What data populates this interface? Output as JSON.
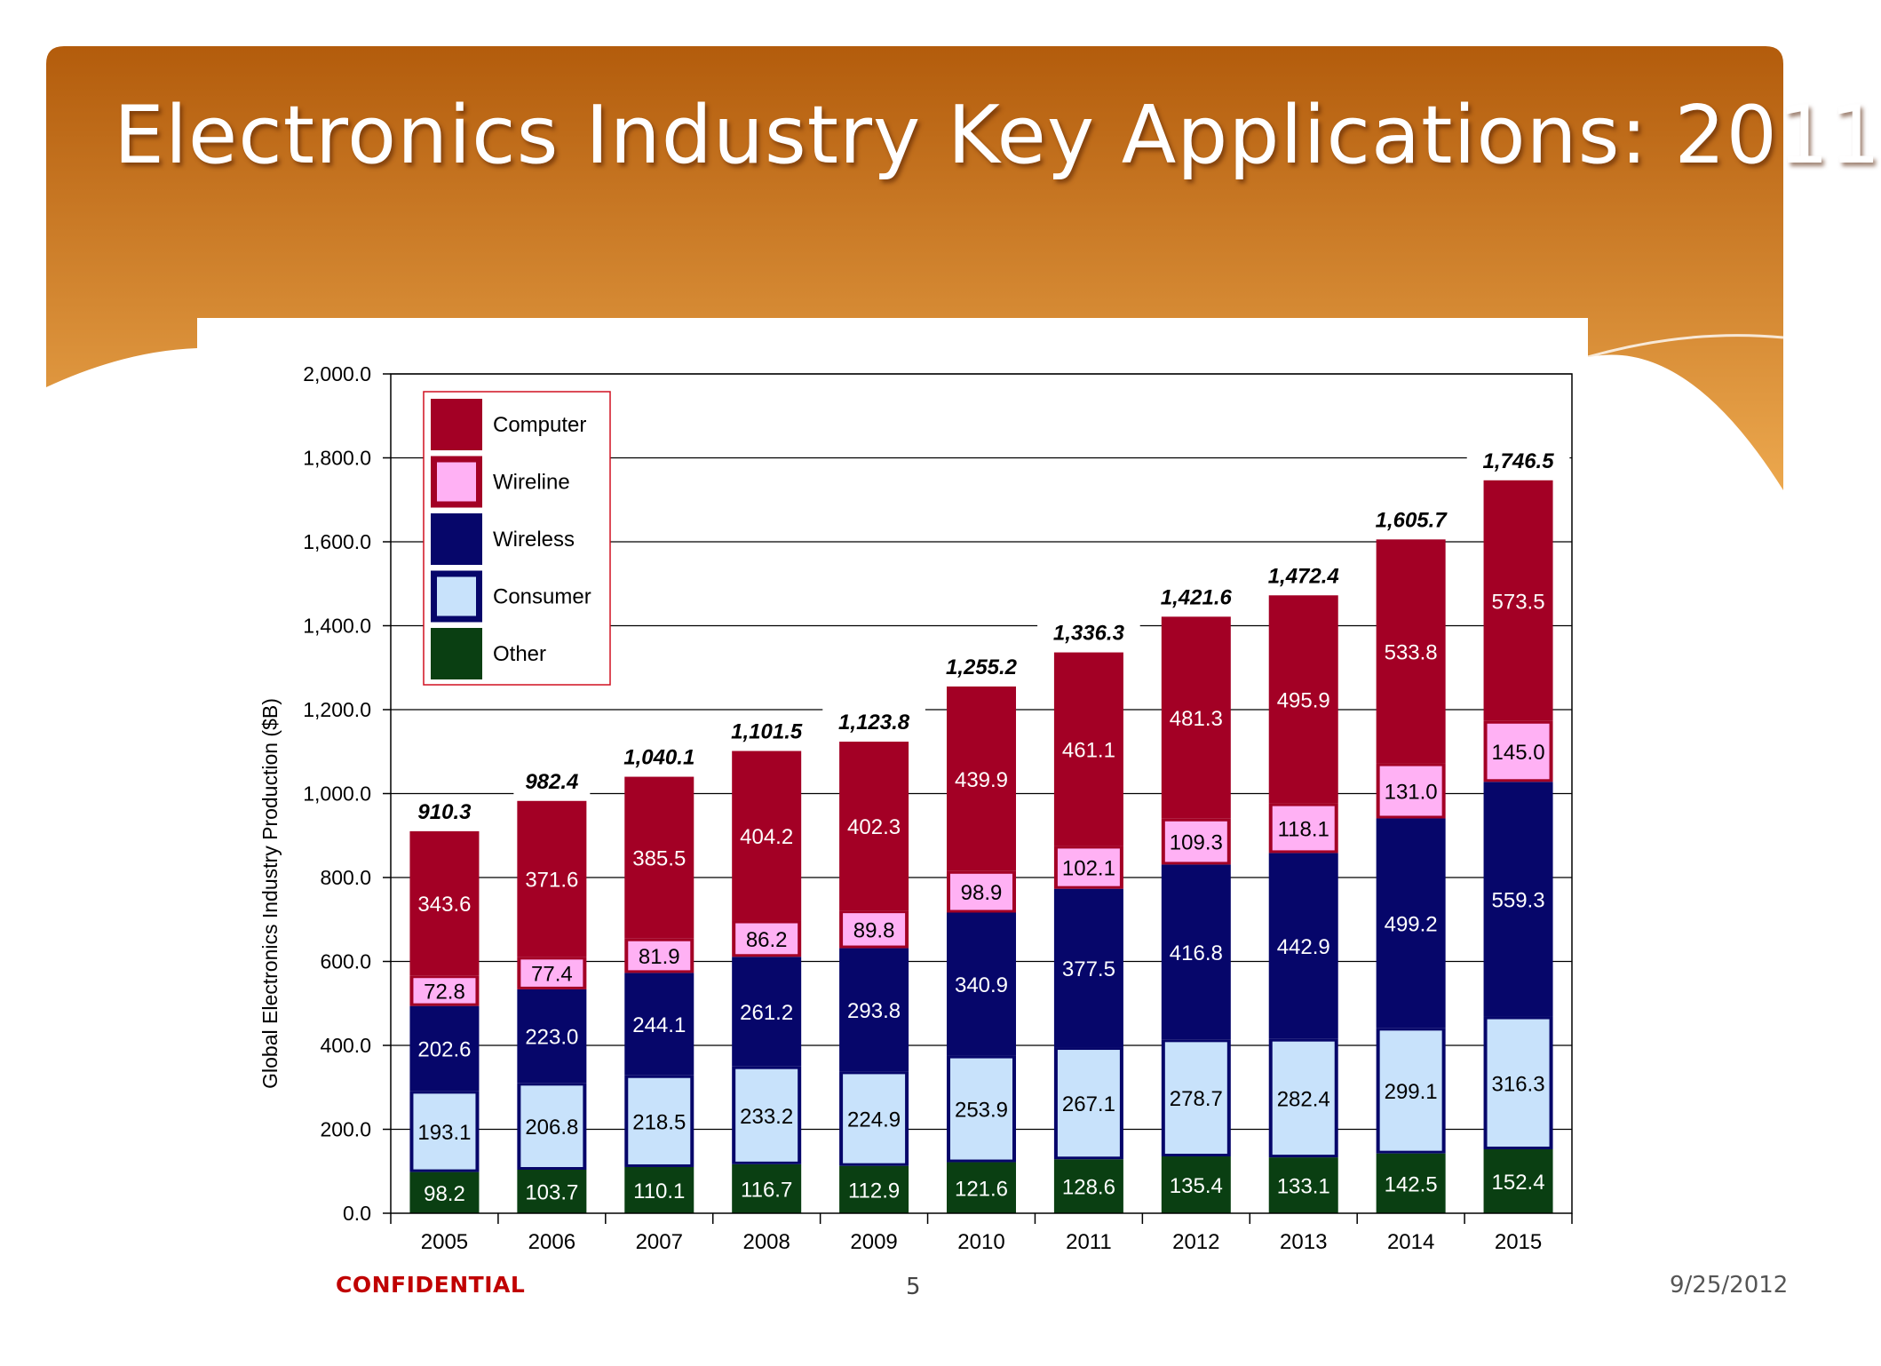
{
  "slide": {
    "title": "Electronics Industry Key Applications: 2011",
    "confidential_label": "CONFIDENTIAL",
    "page_number": "5",
    "date": "9/25/2012"
  },
  "colors": {
    "header_top": "#b35c0c",
    "header_bottom": "#eca84e",
    "Computer": "#a30025",
    "Wireline": "#ffb1f4",
    "Wireless": "#06066a",
    "Consumer": "#c8e2fb",
    "Other": "#0a3f12"
  },
  "chart_data": {
    "type": "bar",
    "stacked": true,
    "ylabel": "Global Electronics Industry Production ($B)",
    "xlabel": "",
    "ylim": [
      0,
      2000
    ],
    "yticks": [
      "0.0",
      "200.0",
      "400.0",
      "600.0",
      "800.0",
      "1,000.0",
      "1,200.0",
      "1,400.0",
      "1,600.0",
      "1,800.0",
      "2,000.0"
    ],
    "grid": true,
    "legend_position": "top-left",
    "categories": [
      "2005",
      "2006",
      "2007",
      "2008",
      "2009",
      "2010",
      "2011",
      "2012",
      "2013",
      "2014",
      "2015"
    ],
    "series": [
      {
        "name": "Other",
        "values": [
          98.2,
          103.7,
          110.1,
          116.7,
          112.9,
          121.6,
          128.6,
          135.4,
          133.1,
          142.5,
          152.4
        ]
      },
      {
        "name": "Consumer",
        "values": [
          193.1,
          206.8,
          218.5,
          233.2,
          224.9,
          253.9,
          267.1,
          278.7,
          282.4,
          299.1,
          316.3
        ]
      },
      {
        "name": "Wireless",
        "values": [
          202.6,
          223.0,
          244.1,
          261.2,
          293.8,
          340.9,
          377.5,
          416.8,
          442.9,
          499.2,
          559.3
        ]
      },
      {
        "name": "Wireline",
        "values": [
          72.8,
          77.4,
          81.9,
          86.2,
          89.8,
          98.9,
          102.1,
          109.3,
          118.1,
          131.0,
          145.0
        ]
      },
      {
        "name": "Computer",
        "values": [
          343.6,
          371.6,
          385.5,
          404.2,
          402.3,
          439.9,
          461.1,
          481.3,
          495.9,
          533.8,
          573.5
        ]
      }
    ],
    "value_labels": [
      [
        "98.2",
        "193.1",
        "202.6",
        "72.8",
        "343.6"
      ],
      [
        "103.7",
        "206.8",
        "223.0",
        "77.4",
        "371.6"
      ],
      [
        "110.1",
        "218.5",
        "244.1",
        "81.9",
        "385.5"
      ],
      [
        "116.7",
        "233.2",
        "261.2",
        "86.2",
        "404.2"
      ],
      [
        "112.9",
        "224.9",
        "293.8",
        "89.8",
        "402.3"
      ],
      [
        "121.6",
        "253.9",
        "340.9",
        "98.9",
        "439.9"
      ],
      [
        "128.6",
        "267.1",
        "377.5",
        "102.1",
        "461.1"
      ],
      [
        "135.4",
        "278.7",
        "416.8",
        "109.3",
        "481.3"
      ],
      [
        "133.1",
        "282.4",
        "442.9",
        "118.1",
        "495.9"
      ],
      [
        "142.5",
        "299.1",
        "499.2",
        "131.0",
        "533.8"
      ],
      [
        "152.4",
        "316.3",
        "559.3",
        "145.0",
        "573.5"
      ]
    ],
    "totals": [
      910.3,
      982.4,
      1040.1,
      1101.5,
      1123.8,
      1255.2,
      1336.3,
      1421.6,
      1472.4,
      1605.7,
      1746.5
    ],
    "total_labels": [
      "910.3",
      "982.4",
      "1,040.1",
      "1,101.5",
      "1,123.8",
      "1,255.2",
      "1,336.3",
      "1,421.6",
      "1,472.4",
      "1,605.7",
      "1,746.5"
    ],
    "legend": [
      "Computer",
      "Wireline",
      "Wireless",
      "Consumer",
      "Other"
    ]
  }
}
